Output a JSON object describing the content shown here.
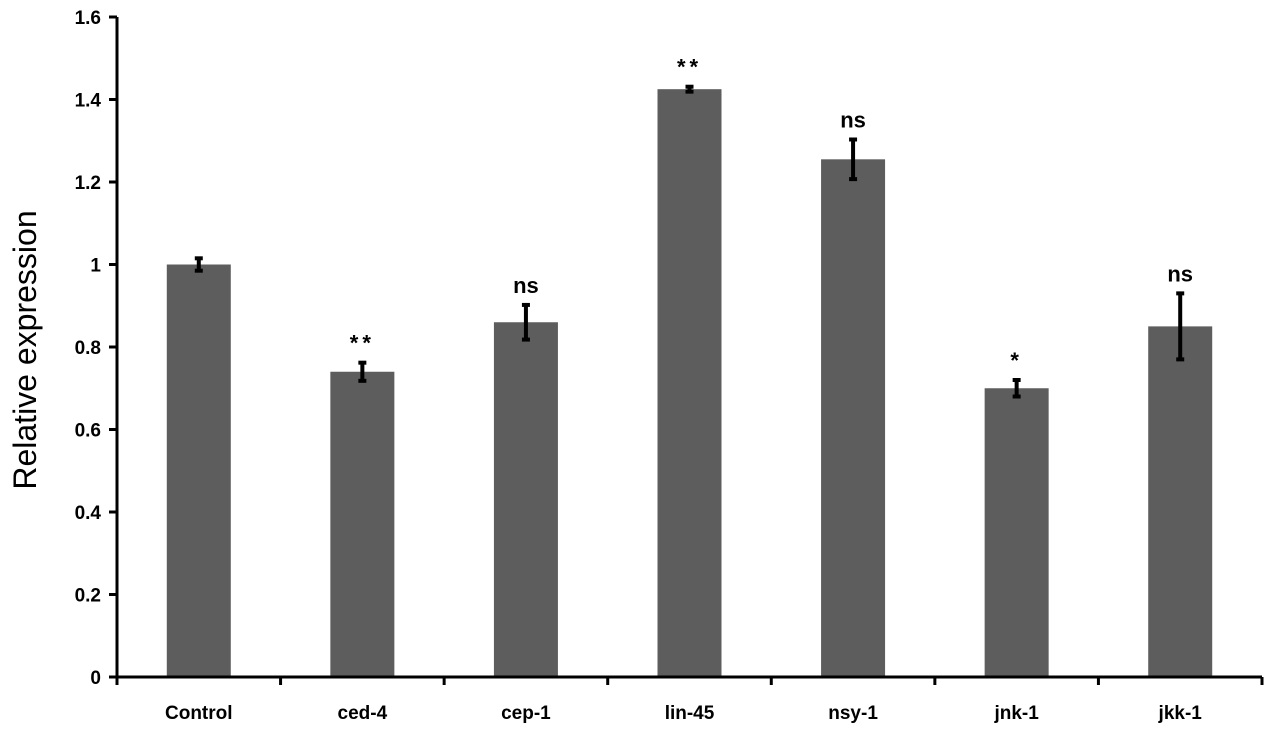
{
  "chart_data": {
    "type": "bar",
    "title": "",
    "xlabel": "",
    "ylabel": "Relative expression",
    "ylim": [
      0,
      1.6
    ],
    "yticks": [
      "0",
      "0.2",
      "0.4",
      "0.6",
      "0.8",
      "1",
      "1.2",
      "1.4",
      "1.6"
    ],
    "grid": false,
    "categories": [
      "Control",
      "ced-4",
      "cep-1",
      "lin-45",
      "nsy-1",
      "jnk-1",
      "jkk-1"
    ],
    "values": [
      1.0,
      0.74,
      0.86,
      1.425,
      1.255,
      0.7,
      0.85
    ],
    "errors": [
      0.015,
      0.022,
      0.042,
      0.006,
      0.048,
      0.02,
      0.08
    ],
    "significance": [
      "",
      "**",
      "ns",
      "**",
      "ns",
      "*",
      "ns"
    ],
    "colors": {
      "bar": "#5d5d5d",
      "axis": "#000000"
    }
  }
}
